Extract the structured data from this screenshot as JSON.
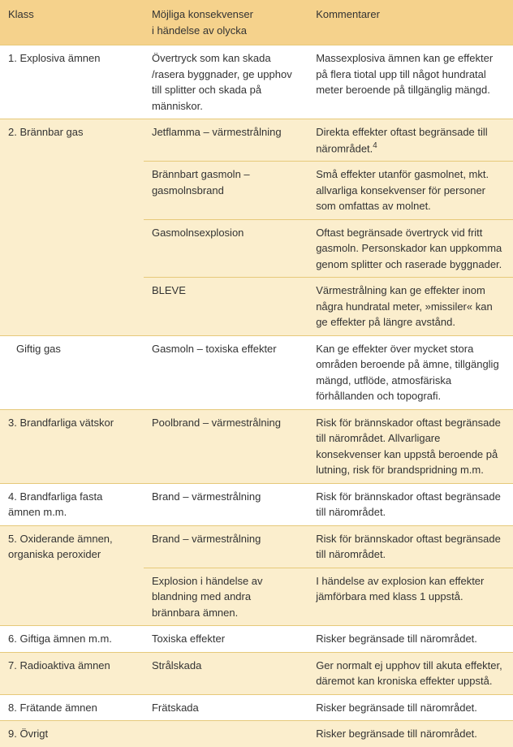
{
  "columns": {
    "klass": "Klass",
    "konsekvenser": "Möjliga konsekvenser i händelse av olycka",
    "kommentarer": "Kommentarer"
  },
  "rows": [
    {
      "klass_num": "1.",
      "klass": "Explosiva ämnen",
      "alt": false,
      "items": [
        {
          "konsekvenser": "Övertryck som kan skada /rasera byggnader, ge upphov till splitter och skada på människor.",
          "kommentarer": "Massexplosiva ämnen kan ge effekter på flera tiotal upp till något hundratal meter beroende på tillgänglig mängd."
        }
      ]
    },
    {
      "klass_num": "2.",
      "klass": "Brännbar gas",
      "alt": true,
      "items": [
        {
          "konsekvenser": "Jetflamma – värmestrålning",
          "kommentarer": "Direkta effekter oftast begränsade till närområdet.",
          "sup": "4"
        },
        {
          "konsekvenser": "Brännbart gasmoln – gasmolnsbrand",
          "kommentarer": "Små effekter utanför gasmolnet, mkt. allvarliga konsekvenser för personer som omfattas av molnet."
        },
        {
          "konsekvenser": "Gasmolnsexplosion",
          "kommentarer": "Oftast begränsade övertryck vid fritt gasmoln. Personskador kan uppkomma genom splitter och raserade byggnader."
        },
        {
          "konsekvenser": "BLEVE",
          "kommentarer": "Värmestrålning kan ge effekter inom några hundratal meter, »missiler« kan ge effekter på längre avstånd."
        }
      ]
    },
    {
      "klass_num": "",
      "klass": "Giftig gas",
      "alt": false,
      "indent": true,
      "items": [
        {
          "konsekvenser": "Gasmoln – toxiska effekter",
          "kommentarer": "Kan ge effekter över mycket stora områden beroende på ämne, tillgänglig mängd, utflöde, atmosfäriska förhållanden och topografi."
        }
      ]
    },
    {
      "klass_num": "3.",
      "klass": "Brandfarliga vätskor",
      "alt": true,
      "items": [
        {
          "konsekvenser": "Poolbrand – värmestrålning",
          "kommentarer": "Risk för brännskador oftast begränsade till närområdet. Allvarligare konsekvenser kan uppstå beroende på lutning, risk för brandspridning m.m."
        }
      ]
    },
    {
      "klass_num": "4.",
      "klass": "Brandfarliga fasta ämnen m.m.",
      "alt": false,
      "items": [
        {
          "konsekvenser": "Brand – värmestrålning",
          "kommentarer": "Risk för brännskador oftast begränsade till närområdet."
        }
      ]
    },
    {
      "klass_num": "5.",
      "klass": "Oxiderande ämnen, organiska peroxider",
      "alt": true,
      "items": [
        {
          "konsekvenser": "Brand – värmestrålning",
          "kommentarer": "Risk för brännskador oftast begränsade till närområdet."
        },
        {
          "konsekvenser": "Explosion i händelse av blandning med andra brännbara ämnen.",
          "kommentarer": "I händelse av explosion kan effekter jämförbara med klass 1 uppstå."
        }
      ]
    },
    {
      "klass_num": "6.",
      "klass": "Giftiga ämnen m.m.",
      "alt": false,
      "items": [
        {
          "konsekvenser": "Toxiska effekter",
          "kommentarer": "Risker begränsade till närområdet."
        }
      ]
    },
    {
      "klass_num": "7.",
      "klass": "Radioaktiva ämnen",
      "alt": true,
      "items": [
        {
          "konsekvenser": "Strålskada",
          "kommentarer": "Ger normalt ej upphov till akuta effekter, däremot kan kroniska effekter uppstå."
        }
      ]
    },
    {
      "klass_num": "8.",
      "klass": "Frätande ämnen",
      "alt": false,
      "items": [
        {
          "konsekvenser": "Frätskada",
          "kommentarer": "Risker begränsade till närområdet."
        }
      ]
    },
    {
      "klass_num": "9.",
      "klass": "Övrigt",
      "alt": true,
      "items": [
        {
          "konsekvenser": "",
          "kommentarer": "Risker begränsade till närområdet."
        }
      ]
    }
  ]
}
